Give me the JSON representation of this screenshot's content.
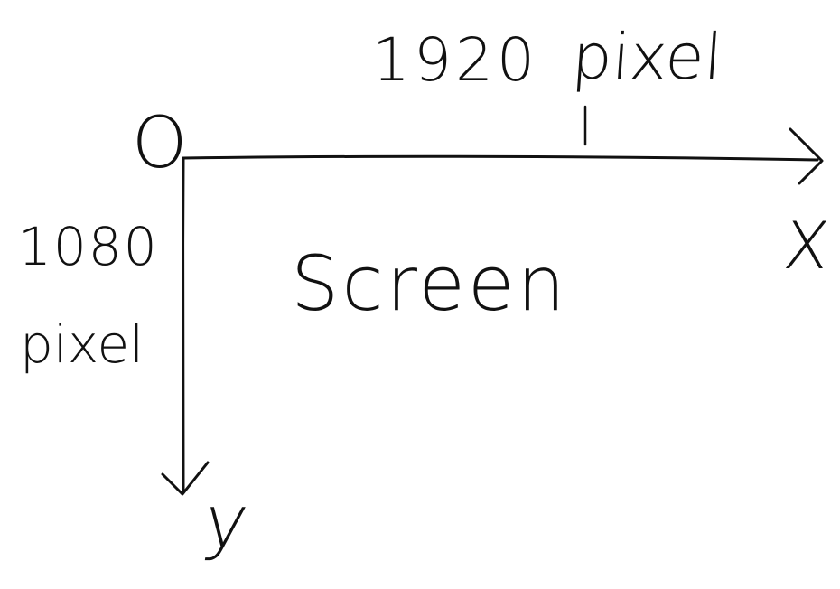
{
  "origin_label": "O",
  "x_axis": {
    "label": "X",
    "width_value": "1920",
    "unit": "pixel"
  },
  "y_axis": {
    "label": "y",
    "height_value": "1080",
    "unit": "pixel"
  },
  "screen_label": "Screen",
  "colors": {
    "ink": "#111111",
    "background": "#ffffff"
  }
}
